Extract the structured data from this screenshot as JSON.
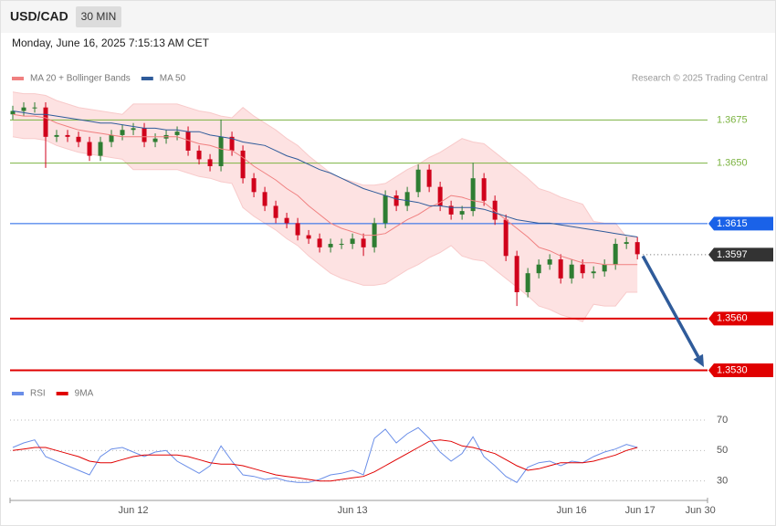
{
  "header": {
    "symbol": "USD/CAD",
    "interval": "30 MIN",
    "timestamp": "Monday, June 16, 2025 7:15:13 AM CET",
    "credit": "Research © 2025 Trading Central"
  },
  "chart_data": [
    {
      "type": "candlestick",
      "xlim": [
        -0.25,
        63.4
      ],
      "ylim": [
        1.3525,
        1.3694
      ],
      "up_color": "#2e7d32",
      "down_color": "#d0021b",
      "open": [
        1.3678,
        1.368,
        1.3682,
        1.3682,
        1.3665,
        1.3666,
        1.3665,
        1.3662,
        1.3654,
        1.3662,
        1.3666,
        1.3669,
        1.367,
        1.3662,
        1.3664,
        1.3666,
        1.3668,
        1.3657,
        1.3652,
        1.3648,
        1.3665,
        1.3657,
        1.3641,
        1.3633,
        1.3625,
        1.3618,
        1.3615,
        1.3608,
        1.3606,
        1.3601,
        1.3603,
        1.3603,
        1.3606,
        1.3601,
        1.3615,
        1.3631,
        1.3625,
        1.3633,
        1.3646,
        1.3636,
        1.3625,
        1.362,
        1.3622,
        1.3641,
        1.3628,
        1.3617,
        1.3596,
        1.3575,
        1.3586,
        1.3591,
        1.3594,
        1.3583,
        1.3591,
        1.3586,
        1.3587,
        1.3591,
        1.3603,
        1.3604
      ],
      "high": [
        1.3683,
        1.3685,
        1.3685,
        1.3685,
        1.3669,
        1.3669,
        1.3668,
        1.3665,
        1.3665,
        1.3669,
        1.3672,
        1.3673,
        1.3673,
        1.3667,
        1.3669,
        1.3671,
        1.3671,
        1.366,
        1.3655,
        1.3675,
        1.3668,
        1.366,
        1.3644,
        1.3636,
        1.3628,
        1.3621,
        1.3618,
        1.3611,
        1.3609,
        1.3606,
        1.3606,
        1.3609,
        1.3609,
        1.3618,
        1.3634,
        1.3634,
        1.3636,
        1.3649,
        1.3649,
        1.3639,
        1.3628,
        1.3625,
        1.365,
        1.3644,
        1.3631,
        1.362,
        1.3599,
        1.3589,
        1.3594,
        1.3597,
        1.3597,
        1.3594,
        1.3594,
        1.359,
        1.3594,
        1.3606,
        1.3607,
        1.3607
      ],
      "low": [
        1.3675,
        1.3677,
        1.3679,
        1.3647,
        1.3662,
        1.3662,
        1.3659,
        1.3651,
        1.3651,
        1.3659,
        1.3663,
        1.3666,
        1.3659,
        1.3659,
        1.3661,
        1.3663,
        1.3654,
        1.3649,
        1.3645,
        1.3645,
        1.3654,
        1.3638,
        1.363,
        1.3622,
        1.3615,
        1.3612,
        1.3605,
        1.3603,
        1.3598,
        1.3598,
        1.36,
        1.36,
        1.3596,
        1.3598,
        1.3612,
        1.3622,
        1.3622,
        1.363,
        1.3633,
        1.3622,
        1.3617,
        1.3617,
        1.3619,
        1.3625,
        1.3614,
        1.3593,
        1.3567,
        1.3572,
        1.3583,
        1.3588,
        1.358,
        1.358,
        1.3583,
        1.3583,
        1.3584,
        1.3588,
        1.36,
        1.3594
      ],
      "close": [
        1.368,
        1.3682,
        1.3682,
        1.3665,
        1.3666,
        1.3665,
        1.3662,
        1.3654,
        1.3662,
        1.3666,
        1.3669,
        1.367,
        1.3662,
        1.3664,
        1.3666,
        1.3668,
        1.3657,
        1.3652,
        1.3648,
        1.3665,
        1.3657,
        1.3641,
        1.3633,
        1.3625,
        1.3618,
        1.3615,
        1.3608,
        1.3606,
        1.3601,
        1.3603,
        1.3603,
        1.3606,
        1.3601,
        1.3615,
        1.3631,
        1.3625,
        1.3633,
        1.3646,
        1.3636,
        1.3625,
        1.362,
        1.3622,
        1.3641,
        1.3628,
        1.3617,
        1.3596,
        1.3575,
        1.3586,
        1.3591,
        1.3594,
        1.3583,
        1.3591,
        1.3586,
        1.3587,
        1.3591,
        1.3603,
        1.3604,
        1.3597
      ],
      "series": [
        {
          "name": "MA 20 + Bollinger Bands",
          "color": "#f08080",
          "values": [
            1.3678,
            1.3677,
            1.3677,
            1.3676,
            1.3673,
            1.3671,
            1.3669,
            1.3668,
            1.3667,
            1.3666,
            1.3665,
            1.3665,
            1.3665,
            1.3665,
            1.3665,
            1.3665,
            1.3663,
            1.3661,
            1.366,
            1.3658,
            1.3657,
            1.3653,
            1.3648,
            1.3644,
            1.364,
            1.3635,
            1.3631,
            1.3625,
            1.362,
            1.3615,
            1.3612,
            1.361,
            1.3608,
            1.3608,
            1.3609,
            1.3613,
            1.3617,
            1.362,
            1.3624,
            1.3627,
            1.3631,
            1.363,
            1.3628,
            1.3627,
            1.3622,
            1.3617,
            1.3612,
            1.3607,
            1.3601,
            1.3599,
            1.3596,
            1.3594,
            1.3592,
            1.3592,
            1.3591,
            1.3591,
            1.3591,
            1.3591
          ]
        },
        {
          "name": "MA 50",
          "color": "#2f5b9a",
          "values": [
            1.368,
            1.3679,
            1.3678,
            1.3678,
            1.3677,
            1.3676,
            1.3675,
            1.3674,
            1.3673,
            1.3673,
            1.3672,
            1.3671,
            1.367,
            1.367,
            1.3669,
            1.3669,
            1.3668,
            1.3668,
            1.3666,
            1.3665,
            1.3664,
            1.3662,
            1.3661,
            1.366,
            1.3657,
            1.3654,
            1.3652,
            1.3649,
            1.3646,
            1.3644,
            1.3641,
            1.3638,
            1.3635,
            1.3633,
            1.3631,
            1.3629,
            1.3628,
            1.3627,
            1.3625,
            1.3625,
            1.3624,
            1.3624,
            1.3624,
            1.3623,
            1.3621,
            1.3619,
            1.3617,
            1.3616,
            1.3615,
            1.3615,
            1.3614,
            1.3613,
            1.3612,
            1.3611,
            1.361,
            1.3609,
            1.3608,
            1.3607
          ]
        }
      ],
      "bands": {
        "color": "#fde2e2",
        "upper": [
          1.3691,
          1.369,
          1.369,
          1.3689,
          1.3686,
          1.3684,
          1.3682,
          1.3681,
          1.368,
          1.3679,
          1.3678,
          1.3684,
          1.3684,
          1.3684,
          1.3684,
          1.3684,
          1.3682,
          1.368,
          1.3679,
          1.3677,
          1.3676,
          1.3682,
          1.3677,
          1.3673,
          1.3669,
          1.3664,
          1.366,
          1.3654,
          1.3649,
          1.3644,
          1.3641,
          1.3639,
          1.3637,
          1.3637,
          1.3638,
          1.3642,
          1.3646,
          1.3649,
          1.3653,
          1.3656,
          1.366,
          1.3664,
          1.3662,
          1.3661,
          1.3656,
          1.3651,
          1.3646,
          1.3641,
          1.3635,
          1.3633,
          1.363,
          1.3628,
          1.3626,
          1.3616,
          1.3615,
          1.3615,
          1.3607,
          1.3607
        ],
        "lower": [
          1.3665,
          1.3664,
          1.3664,
          1.3663,
          1.366,
          1.3658,
          1.3656,
          1.3655,
          1.3654,
          1.3653,
          1.3652,
          1.3646,
          1.3646,
          1.3646,
          1.3646,
          1.3646,
          1.3644,
          1.3642,
          1.3641,
          1.3639,
          1.3638,
          1.3624,
          1.3619,
          1.3615,
          1.3611,
          1.3606,
          1.3602,
          1.3596,
          1.3591,
          1.3586,
          1.3583,
          1.3581,
          1.3579,
          1.3579,
          1.358,
          1.3584,
          1.3588,
          1.3591,
          1.3595,
          1.3598,
          1.3602,
          1.3596,
          1.3594,
          1.3593,
          1.3588,
          1.3583,
          1.3578,
          1.3573,
          1.3567,
          1.3565,
          1.3562,
          1.356,
          1.3558,
          1.3568,
          1.3567,
          1.3567,
          1.3575,
          1.3575
        ]
      },
      "levels": [
        {
          "value": 1.3675,
          "color": "#7cb342",
          "boxed": false,
          "line": "solid",
          "width": 1
        },
        {
          "value": 1.365,
          "label": "1.3650",
          "color": "#7cb342",
          "boxed": false,
          "line": "solid",
          "width": 1
        },
        {
          "value": 1.3615,
          "color": "#1a62e8",
          "boxed": true,
          "line": "solid",
          "width": 1
        },
        {
          "value": 1.3597,
          "color": "#333333",
          "boxed": true,
          "line": "dotted",
          "width": 1
        },
        {
          "value": 1.356,
          "label": "1.3560",
          "color": "#e00000",
          "boxed": true,
          "line": "solid",
          "width": 2
        },
        {
          "value": 1.353,
          "label": "1.3530",
          "color": "#e00000",
          "boxed": true,
          "line": "solid",
          "width": 2
        }
      ],
      "arrow_color": "#2f5b9a"
    },
    {
      "type": "line",
      "xlim": [
        -0.25,
        63.4
      ],
      "ylim": [
        22,
        82
      ],
      "yticks": [
        30,
        50,
        70
      ],
      "grid": "dotted",
      "series": [
        {
          "name": "RSI",
          "color": "#6a8ee8",
          "values": [
            52,
            55,
            57,
            46,
            43,
            40,
            37,
            34,
            46,
            51,
            52,
            49,
            46,
            49,
            50,
            43,
            39,
            35,
            40,
            53,
            43,
            34,
            33,
            31,
            32,
            30,
            29,
            29,
            31,
            34,
            35,
            37,
            34,
            58,
            64,
            55,
            61,
            65,
            58,
            49,
            43,
            48,
            59,
            46,
            40,
            33,
            29,
            39,
            42,
            43,
            40,
            43,
            42,
            46,
            49,
            51,
            54,
            52
          ]
        },
        {
          "name": "9MA",
          "color": "#e00000",
          "values": [
            50,
            51,
            52,
            52,
            50,
            48,
            46,
            43,
            42,
            42,
            44,
            46,
            47,
            47,
            47,
            47,
            46,
            44,
            42,
            41,
            41,
            40,
            38,
            36,
            34,
            33,
            32,
            31,
            30,
            30,
            31,
            32,
            33,
            36,
            40,
            44,
            48,
            52,
            56,
            57,
            56,
            53,
            52,
            50,
            48,
            44,
            40,
            37,
            38,
            40,
            42,
            42,
            42,
            43,
            45,
            47,
            50,
            52
          ]
        }
      ],
      "xticks": [
        {
          "value": 11,
          "label": "Jun 12"
        },
        {
          "value": 31,
          "label": "Jun 13"
        },
        {
          "value": 51,
          "label": "Jun 16"
        },
        {
          "value": 57.25,
          "label": "Jun 17"
        },
        {
          "value": 62.75,
          "label": "Jun 30"
        }
      ]
    }
  ]
}
